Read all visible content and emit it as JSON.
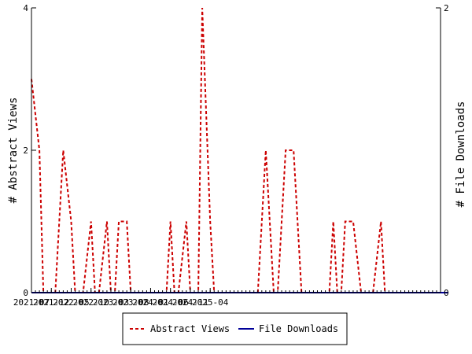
{
  "chart_data": {
    "type": "line",
    "x_tick_labels": [
      "2021-07",
      "2021-12",
      "2022-05",
      "2022-10",
      "2023-03",
      "2023-08",
      "2024-01",
      "2024-06",
      "2024-11",
      "2025-04"
    ],
    "y_left": {
      "label": "# Abstract Views",
      "range": [
        0,
        4
      ],
      "ticks": [
        0,
        2,
        4
      ]
    },
    "y_right": {
      "label": "# File Downloads",
      "range": [
        0,
        2
      ],
      "ticks": [
        0,
        2
      ]
    },
    "grid": false,
    "legend_placement": "bottom",
    "series": [
      {
        "name": "Abstract Views",
        "axis": "left",
        "color": "#cc0000",
        "style": "dashed",
        "values": [
          3,
          2.5,
          2,
          0,
          0,
          0,
          0,
          1,
          2,
          1.5,
          1,
          0,
          0,
          0,
          0.5,
          1,
          0,
          0,
          0.5,
          1,
          0,
          0,
          1,
          1,
          1,
          0,
          0,
          0,
          0,
          0,
          0,
          0,
          0,
          0,
          0,
          1,
          0,
          0,
          0.5,
          1,
          0,
          0,
          0,
          4,
          2.5,
          1,
          0,
          0,
          0,
          0,
          0,
          0,
          0,
          0,
          0,
          0,
          0,
          0,
          1,
          2,
          1,
          0,
          0,
          1,
          2,
          2,
          2,
          1,
          0,
          0,
          0,
          0,
          0,
          0,
          0,
          0,
          1,
          0,
          0,
          1,
          1,
          1,
          0.5,
          0,
          0,
          0,
          0,
          0.5,
          1,
          0,
          0,
          0,
          0,
          0,
          0,
          0,
          0,
          0,
          0,
          0,
          0,
          0,
          0,
          0
        ]
      },
      {
        "name": "File Downloads",
        "axis": "right",
        "color": "#000099",
        "style": "solid",
        "values": [
          0,
          0,
          0,
          0,
          0,
          0,
          0,
          0,
          0,
          0,
          0,
          0,
          0,
          0,
          0,
          0,
          0,
          0,
          0,
          0,
          0,
          0,
          0,
          0,
          0,
          0,
          0,
          0,
          0,
          0,
          0,
          0,
          0,
          0,
          0,
          0,
          0,
          0,
          0,
          0,
          0,
          0,
          0,
          0,
          0,
          0,
          0,
          0,
          0,
          0,
          0,
          0,
          0,
          0,
          0,
          0,
          0,
          0,
          0,
          0,
          0,
          0,
          0,
          0,
          0,
          0,
          0,
          0,
          0,
          0,
          0,
          0,
          0,
          0,
          0,
          0,
          0,
          0,
          0,
          0,
          0,
          0,
          0,
          0,
          0,
          0,
          0,
          0,
          0,
          0,
          0,
          0,
          0,
          0,
          0,
          0,
          0,
          0,
          0,
          0,
          0,
          0,
          0,
          0,
          0,
          0
        ]
      }
    ]
  }
}
